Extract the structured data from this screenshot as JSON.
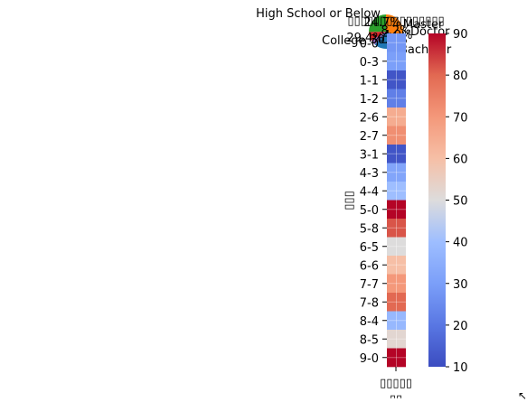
{
  "chart_data": [
    {
      "type": "pie",
      "title": "",
      "slices": [
        {
          "label": "High School or Below",
          "pct_label": "24.7%",
          "value": 24.7,
          "color": "#2ca02c"
        },
        {
          "label": "Master",
          "pct_label": "8.2%",
          "value": 8.2,
          "color": "#d62728"
        },
        {
          "label": "Doctor",
          "pct_label": "4.9%",
          "value": 4.9,
          "color": "#9467bd"
        },
        {
          "label": "Bachelor",
          "pct_label": "30.1%",
          "value": 30.1,
          "color": "#1f77b4"
        },
        {
          "label": "College",
          "pct_label": "29.4%",
          "value": 29.4,
          "color": "#ff7f0e"
        }
      ]
    },
    {
      "type": "heatmap",
      "title": "▯▯▯▯▯▯▯▯▯▯▯▯▯▯▯",
      "xlabel": "▯▯",
      "ylabel": "▯▯▯",
      "x_categories": [
        "▯▯▯▯▯"
      ],
      "y_categories": [
        "0-0",
        "0-3",
        "1-1",
        "1-2",
        "2-6",
        "2-7",
        "3-1",
        "4-3",
        "4-4",
        "5-0",
        "5-8",
        "6-5",
        "6-6",
        "7-7",
        "7-8",
        "8-4",
        "8-5",
        "9-0"
      ],
      "values": [
        28,
        30,
        12,
        22,
        65,
        72,
        12,
        32,
        40,
        90,
        82,
        50,
        60,
        70,
        80,
        38,
        52,
        90
      ],
      "colorbar": {
        "min": 10,
        "max": 90,
        "ticks": [
          10,
          20,
          30,
          40,
          50,
          60,
          70,
          80,
          90
        ]
      },
      "colormap": "coolwarm"
    }
  ],
  "cursor_glyph": "↖"
}
